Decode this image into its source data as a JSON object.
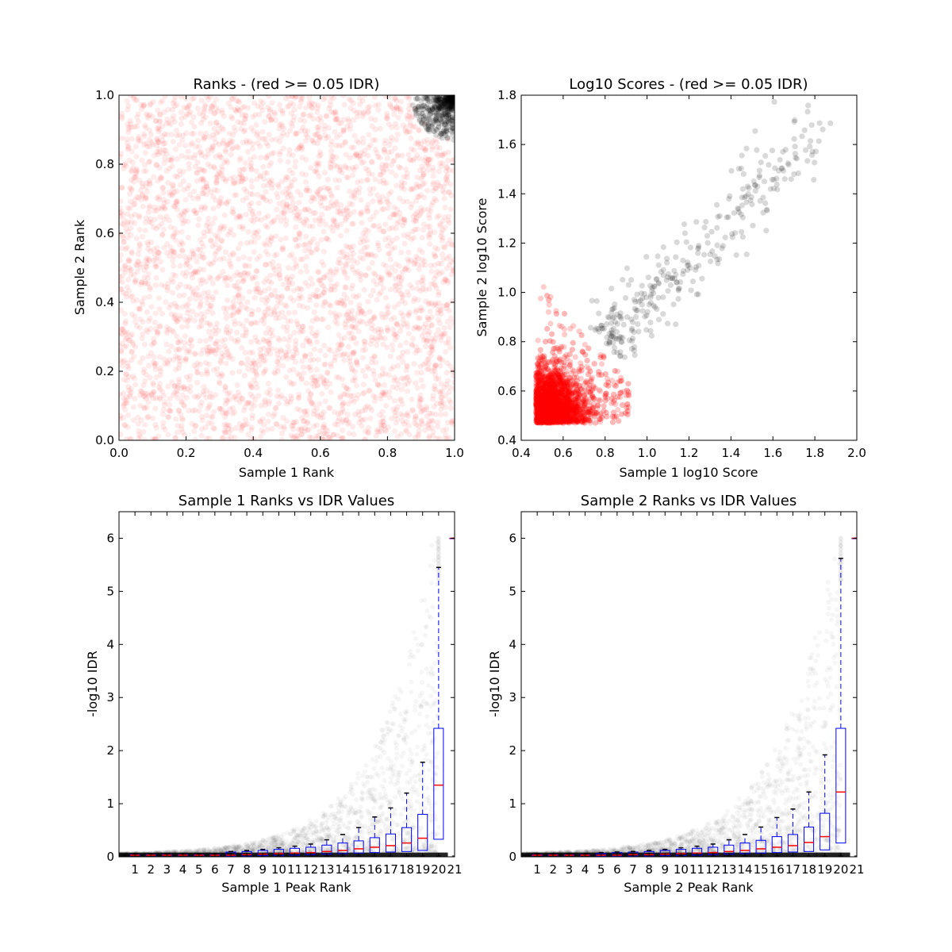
{
  "chart_data": [
    {
      "id": "ranks",
      "type": "scatter",
      "title": "Ranks - (red >= 0.05 IDR)",
      "xlabel": "Sample 1 Rank",
      "ylabel": "Sample 2 Rank",
      "xlim": [
        0.0,
        1.0
      ],
      "ylim": [
        0.0,
        1.0
      ],
      "xticks": [
        "0.0",
        "0.2",
        "0.4",
        "0.6",
        "0.8",
        "1.0"
      ],
      "yticks": [
        "0.0",
        "0.2",
        "0.4",
        "0.6",
        "0.8",
        "1.0"
      ],
      "series": [
        {
          "color": "#ff0000",
          "alpha": 0.08,
          "distribution": "uniform over [0,1]x[0,1] outside top-right corner",
          "count": 3500
        },
        {
          "color": "#000000",
          "alpha": 0.15,
          "distribution": "dense cluster near (1.0, 1.0), x,y >= ~0.88",
          "count": 500
        }
      ],
      "grid": false
    },
    {
      "id": "scores",
      "type": "scatter",
      "title": "Log10 Scores - (red >= 0.05 IDR)",
      "xlabel": "Sample 1 log10 Score",
      "ylabel": "Sample 2 log10 Score",
      "xlim": [
        0.4,
        2.0
      ],
      "ylim": [
        0.4,
        1.8
      ],
      "xticks": [
        "0.4",
        "0.6",
        "0.8",
        "1.0",
        "1.2",
        "1.4",
        "1.6",
        "1.8",
        "2.0"
      ],
      "yticks": [
        "0.4",
        "0.6",
        "0.8",
        "1.0",
        "1.2",
        "1.4",
        "1.6",
        "1.8"
      ],
      "series": [
        {
          "color": "#ff0000",
          "alpha": 0.1,
          "distribution": "dense mass from (0.47,0.47) to about (0.95,1.1), densest near (0.5,0.5)",
          "count": 5000
        },
        {
          "color": "#000000",
          "alpha": 0.15,
          "distribution": "sparse diagonal band x 0.75-1.85, y 0.75-1.72",
          "count": 350
        }
      ],
      "grid": false
    },
    {
      "id": "s1box",
      "type": "box",
      "title": "Sample 1 Ranks vs IDR Values",
      "xlabel": "Sample 1 Peak Rank",
      "ylabel": "-log10 IDR",
      "xlim": [
        0,
        21
      ],
      "ylim": [
        0,
        6.5
      ],
      "categories": [
        "1",
        "2",
        "3",
        "4",
        "5",
        "6",
        "7",
        "8",
        "9",
        "10",
        "11",
        "12",
        "13",
        "14",
        "15",
        "16",
        "17",
        "18",
        "19",
        "20",
        "21"
      ],
      "yticks": [
        "0",
        "1",
        "2",
        "3",
        "4",
        "5",
        "6"
      ],
      "boxes": [
        {
          "q1": 0.0,
          "median": 0.03,
          "q3": 0.04,
          "whisker_high": 0.05
        },
        {
          "q1": 0.0,
          "median": 0.03,
          "q3": 0.04,
          "whisker_high": 0.05
        },
        {
          "q1": 0.0,
          "median": 0.03,
          "q3": 0.04,
          "whisker_high": 0.05
        },
        {
          "q1": 0.0,
          "median": 0.03,
          "q3": 0.04,
          "whisker_high": 0.05
        },
        {
          "q1": 0.0,
          "median": 0.03,
          "q3": 0.04,
          "whisker_high": 0.05
        },
        {
          "q1": 0.0,
          "median": 0.03,
          "q3": 0.04,
          "whisker_high": 0.05
        },
        {
          "q1": 0.01,
          "median": 0.03,
          "q3": 0.09,
          "whisker_high": 0.1
        },
        {
          "q1": 0.01,
          "median": 0.04,
          "q3": 0.1,
          "whisker_high": 0.12
        },
        {
          "q1": 0.02,
          "median": 0.05,
          "q3": 0.12,
          "whisker_high": 0.14
        },
        {
          "q1": 0.02,
          "median": 0.06,
          "q3": 0.14,
          "whisker_high": 0.17
        },
        {
          "q1": 0.03,
          "median": 0.07,
          "q3": 0.16,
          "whisker_high": 0.2
        },
        {
          "q1": 0.04,
          "median": 0.08,
          "q3": 0.18,
          "whisker_high": 0.24
        },
        {
          "q1": 0.05,
          "median": 0.1,
          "q3": 0.22,
          "whisker_high": 0.32
        },
        {
          "q1": 0.06,
          "median": 0.12,
          "q3": 0.26,
          "whisker_high": 0.42
        },
        {
          "q1": 0.07,
          "median": 0.15,
          "q3": 0.3,
          "whisker_high": 0.55
        },
        {
          "q1": 0.08,
          "median": 0.18,
          "q3": 0.36,
          "whisker_high": 0.75
        },
        {
          "q1": 0.09,
          "median": 0.21,
          "q3": 0.43,
          "whisker_high": 0.92
        },
        {
          "q1": 0.1,
          "median": 0.26,
          "q3": 0.55,
          "whisker_high": 1.2
        },
        {
          "q1": 0.12,
          "median": 0.35,
          "q3": 0.8,
          "whisker_high": 1.78
        },
        {
          "q1": 0.33,
          "median": 1.35,
          "q3": 2.42,
          "whisker_high": 5.45
        },
        {
          "q1": 6.0,
          "median": 6.0,
          "q3": 6.0,
          "whisker_high": 6.0
        }
      ],
      "scatter": {
        "color": "#000000",
        "alpha": 0.02,
        "description": "cloud rising exponentially toward rank 20"
      }
    },
    {
      "id": "s2box",
      "type": "box",
      "title": "Sample 2 Ranks vs IDR Values",
      "xlabel": "Sample 2 Peak Rank",
      "ylabel": "-log10 IDR",
      "xlim": [
        0,
        21
      ],
      "ylim": [
        0,
        6.5
      ],
      "categories": [
        "1",
        "2",
        "3",
        "4",
        "5",
        "6",
        "7",
        "8",
        "9",
        "10",
        "11",
        "12",
        "13",
        "14",
        "15",
        "16",
        "17",
        "18",
        "19",
        "20",
        "21"
      ],
      "yticks": [
        "0",
        "1",
        "2",
        "3",
        "4",
        "5",
        "6"
      ],
      "boxes": [
        {
          "q1": 0.0,
          "median": 0.03,
          "q3": 0.04,
          "whisker_high": 0.05
        },
        {
          "q1": 0.0,
          "median": 0.03,
          "q3": 0.04,
          "whisker_high": 0.05
        },
        {
          "q1": 0.0,
          "median": 0.03,
          "q3": 0.04,
          "whisker_high": 0.05
        },
        {
          "q1": 0.0,
          "median": 0.03,
          "q3": 0.04,
          "whisker_high": 0.05
        },
        {
          "q1": 0.01,
          "median": 0.03,
          "q3": 0.06,
          "whisker_high": 0.08
        },
        {
          "q1": 0.01,
          "median": 0.03,
          "q3": 0.08,
          "whisker_high": 0.09
        },
        {
          "q1": 0.01,
          "median": 0.04,
          "q3": 0.09,
          "whisker_high": 0.1
        },
        {
          "q1": 0.01,
          "median": 0.04,
          "q3": 0.1,
          "whisker_high": 0.12
        },
        {
          "q1": 0.02,
          "median": 0.05,
          "q3": 0.12,
          "whisker_high": 0.14
        },
        {
          "q1": 0.02,
          "median": 0.06,
          "q3": 0.14,
          "whisker_high": 0.17
        },
        {
          "q1": 0.03,
          "median": 0.07,
          "q3": 0.16,
          "whisker_high": 0.2
        },
        {
          "q1": 0.04,
          "median": 0.08,
          "q3": 0.18,
          "whisker_high": 0.24
        },
        {
          "q1": 0.05,
          "median": 0.1,
          "q3": 0.22,
          "whisker_high": 0.32
        },
        {
          "q1": 0.06,
          "median": 0.12,
          "q3": 0.26,
          "whisker_high": 0.42
        },
        {
          "q1": 0.07,
          "median": 0.15,
          "q3": 0.31,
          "whisker_high": 0.56
        },
        {
          "q1": 0.08,
          "median": 0.18,
          "q3": 0.38,
          "whisker_high": 0.74
        },
        {
          "q1": 0.09,
          "median": 0.21,
          "q3": 0.42,
          "whisker_high": 0.9
        },
        {
          "q1": 0.1,
          "median": 0.27,
          "q3": 0.56,
          "whisker_high": 1.22
        },
        {
          "q1": 0.13,
          "median": 0.38,
          "q3": 0.82,
          "whisker_high": 1.92
        },
        {
          "q1": 0.26,
          "median": 1.22,
          "q3": 2.42,
          "whisker_high": 5.62
        },
        {
          "q1": 6.0,
          "median": 6.0,
          "q3": 6.0,
          "whisker_high": 6.0
        }
      ],
      "scatter": {
        "color": "#000000",
        "alpha": 0.02,
        "description": "cloud rising exponentially toward rank 20"
      }
    }
  ]
}
